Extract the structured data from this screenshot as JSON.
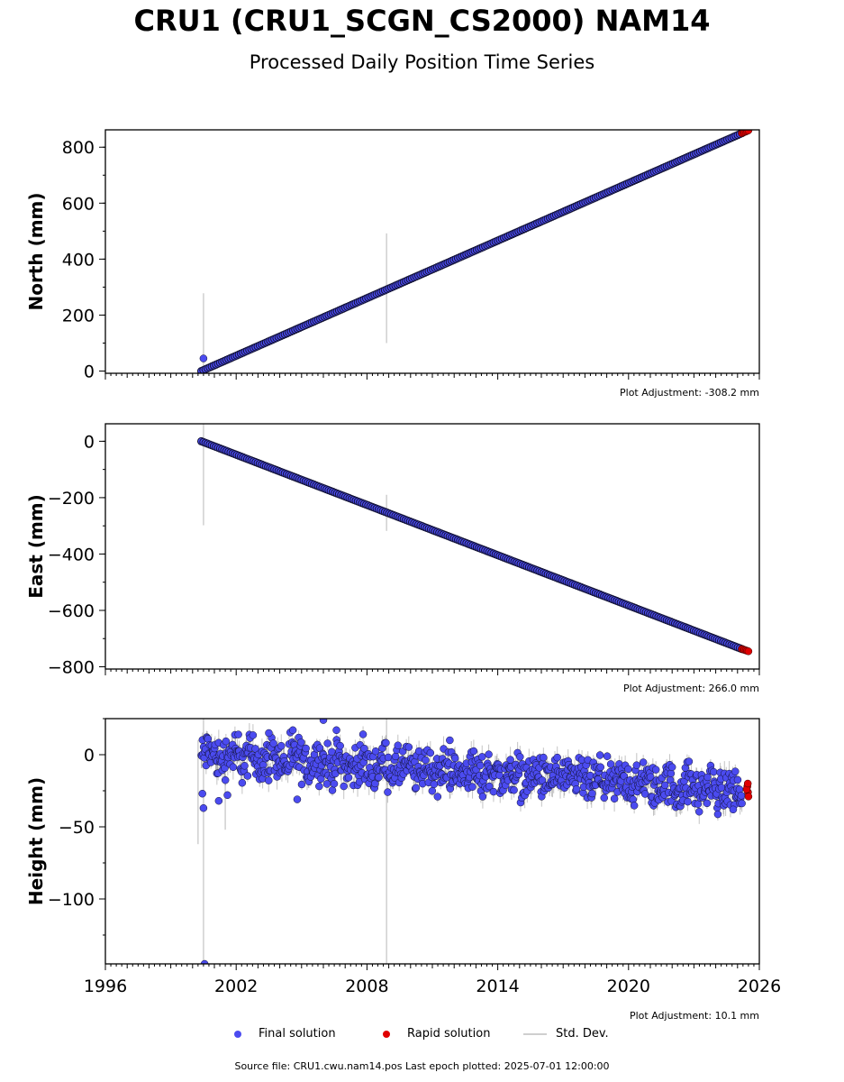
{
  "title": "CRU1 (CRU1_SCGN_CS2000) NAM14",
  "subtitle": "Processed Daily Position Time Series",
  "legend": {
    "final": "Final solution",
    "rapid": "Rapid solution",
    "stddev": "Std. Dev."
  },
  "footer": "Source file: CRU1.cwu.nam14.pos  Last epoch plotted: 2025-07-01 12:00:00",
  "colors": {
    "final": "#4b4bf0",
    "rapid": "#e00000",
    "stddev": "#cfcfcf",
    "marker_edge": "#111133"
  },
  "chart_data": [
    {
      "type": "scatter",
      "panel": "north",
      "ylabel": "North (mm)",
      "xlim": [
        1996,
        2026
      ],
      "ylim": [
        -8,
        862
      ],
      "yticks": [
        0,
        200,
        400,
        600,
        800
      ],
      "xticks": [
        1996,
        2002,
        2008,
        2014,
        2020,
        2026
      ],
      "show_xtick_labels": false,
      "adjustment": "Plot Adjustment: -308.2 mm",
      "grid": false,
      "series": [
        {
          "name": "Final solution",
          "trend": {
            "x": [
              2000.4,
              2025.2
            ],
            "y": [
              0,
              850
            ]
          }
        },
        {
          "name": "Rapid solution",
          "trend": {
            "x": [
              2025.2,
              2025.5
            ],
            "y": [
              850,
              860
            ]
          }
        }
      ],
      "outliers": [
        {
          "x": 2000.5,
          "y": 45
        }
      ],
      "error_bars": [
        {
          "x": 2000.5,
          "low": 0,
          "high": 278
        },
        {
          "x": 2008.9,
          "low": 100,
          "high": 492
        }
      ]
    },
    {
      "type": "scatter",
      "panel": "east",
      "ylabel": "East (mm)",
      "xlim": [
        1996,
        2026
      ],
      "ylim": [
        -808,
        62
      ],
      "yticks": [
        0,
        -200,
        -400,
        -600,
        -800
      ],
      "xticks": [
        1996,
        2002,
        2008,
        2014,
        2020,
        2026
      ],
      "show_xtick_labels": false,
      "adjustment": "Plot Adjustment: 266.0 mm",
      "grid": false,
      "series": [
        {
          "name": "Final solution",
          "trend": {
            "x": [
              2000.4,
              2025.2
            ],
            "y": [
              0,
              -737
            ]
          }
        },
        {
          "name": "Rapid solution",
          "trend": {
            "x": [
              2025.2,
              2025.5
            ],
            "y": [
              -737,
              -745
            ]
          }
        }
      ],
      "outliers": [],
      "error_bars": [
        {
          "x": 2000.5,
          "low": -298,
          "high": 60
        },
        {
          "x": 2008.9,
          "low": -318,
          "high": -190
        }
      ]
    },
    {
      "type": "scatter",
      "panel": "height",
      "ylabel": "Height (mm)",
      "xlim": [
        1996,
        2026
      ],
      "ylim": [
        -145,
        25
      ],
      "yticks": [
        0,
        -50,
        -100
      ],
      "xticks": [
        1996,
        2002,
        2008,
        2014,
        2020,
        2026
      ],
      "show_xtick_labels": true,
      "adjustment": "Plot Adjustment: 10.1 mm",
      "grid": false,
      "series": [
        {
          "name": "Final solution",
          "trend": {
            "x": [
              2000.4,
              2025.2
            ],
            "y": [
              0,
              -25
            ]
          },
          "scatter_range_mm": 12
        },
        {
          "name": "Rapid solution",
          "points": [
            {
              "x": 2025.45,
              "y": -22
            },
            {
              "x": 2025.48,
              "y": -26
            },
            {
              "x": 2025.5,
              "y": -29
            },
            {
              "x": 2025.42,
              "y": -24
            },
            {
              "x": 2025.47,
              "y": -20
            }
          ]
        }
      ],
      "outliers": [
        {
          "x": 2000.5,
          "y": -37
        },
        {
          "x": 2000.45,
          "y": -27
        },
        {
          "x": 2000.55,
          "y": -145
        },
        {
          "x": 2006.0,
          "y": 24
        },
        {
          "x": 2001.6,
          "y": -28
        },
        {
          "x": 2004.8,
          "y": -31
        },
        {
          "x": 2011.8,
          "y": 10
        },
        {
          "x": 2004.6,
          "y": 17
        },
        {
          "x": 2006.6,
          "y": 17
        },
        {
          "x": 2002.1,
          "y": 14
        },
        {
          "x": 2003.5,
          "y": 15
        },
        {
          "x": 2001.2,
          "y": -32
        },
        {
          "x": 2024.8,
          "y": -38
        }
      ],
      "error_bars": [
        {
          "x": 2000.5,
          "low": -145,
          "high": 25
        },
        {
          "x": 2008.9,
          "low": -145,
          "high": 25
        },
        {
          "x": 2000.25,
          "low": -62,
          "high": 10
        },
        {
          "x": 2001.5,
          "low": -52,
          "high": 0
        }
      ]
    }
  ]
}
